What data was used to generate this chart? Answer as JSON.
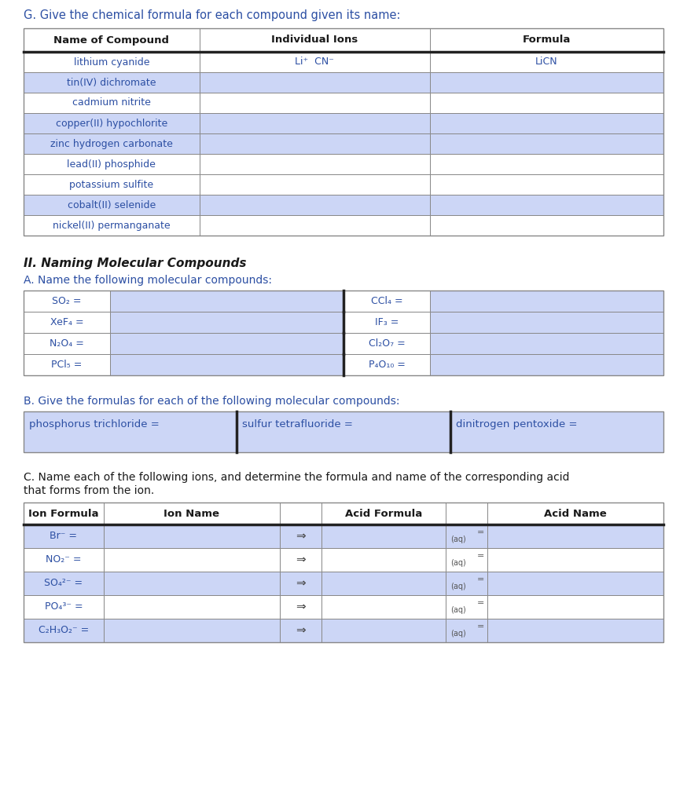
{
  "bg_color": "#ffffff",
  "text_color": "#2c4fa3",
  "cell_bg_light": "#ccd6f6",
  "cell_bg_white": "#ffffff",
  "header_bg": "#ffffff",
  "border_color": "#888888",
  "thick_border": "#222222",
  "section_g_title": "G. Give the chemical formula for each compound given its name:",
  "table1_headers": [
    "Name of Compound",
    "Individual Ions",
    "Formula"
  ],
  "table1_rows": [
    [
      "lithium cyanide",
      "Li⁺  CN⁻",
      "LiCN"
    ],
    [
      "tin(IV) dichromate",
      "",
      ""
    ],
    [
      "cadmium nitrite",
      "",
      ""
    ],
    [
      "copper(II) hypochlorite",
      "",
      ""
    ],
    [
      "zinc hydrogen carbonate",
      "",
      ""
    ],
    [
      "lead(II) phosphide",
      "",
      ""
    ],
    [
      "potassium sulfite",
      "",
      ""
    ],
    [
      "cobalt(II) selenide",
      "",
      ""
    ],
    [
      "nickel(II) permanganate",
      "",
      ""
    ]
  ],
  "table1_row_colors": [
    0,
    1,
    0,
    1,
    1,
    0,
    0,
    1,
    0
  ],
  "section2_title": "II. Naming Molecular Compounds",
  "section_a2_title": "A. Name the following molecular compounds:",
  "table2_left": [
    "SO₂ =",
    "XeF₄ =",
    "N₂O₄ =",
    "PCl₅ ="
  ],
  "table2_right": [
    "CCl₄ =",
    "IF₃ =",
    "Cl₂O₇ =",
    "P₄O₁₀ ="
  ],
  "section_b2_title": "B. Give the formulas for each of the following molecular compounds:",
  "table3_cols": [
    "phosphorus trichloride =",
    "sulfur tetrafluoride =",
    "dinitrogen pentoxide ="
  ],
  "section_c_title_line1": "C. Name each of the following ions, and determine the formula and name of the corresponding acid",
  "section_c_title_line2": "that forms from the ion.",
  "table4_headers": [
    "Ion Formula",
    "Ion Name",
    "",
    "Acid Formula",
    "",
    "Acid Name"
  ],
  "table4_rows": [
    [
      "Br⁻ =",
      "",
      "⇒",
      "",
      "",
      ""
    ],
    [
      "NO₂⁻ =",
      "",
      "⇒",
      "",
      "",
      ""
    ],
    [
      "SO₄²⁻ =",
      "",
      "⇒",
      "",
      "",
      ""
    ],
    [
      "PO₄³⁻ =",
      "",
      "⇒",
      "",
      "",
      ""
    ],
    [
      "C₂H₃O₂⁻ =",
      "",
      "⇒",
      "",
      "",
      ""
    ]
  ]
}
